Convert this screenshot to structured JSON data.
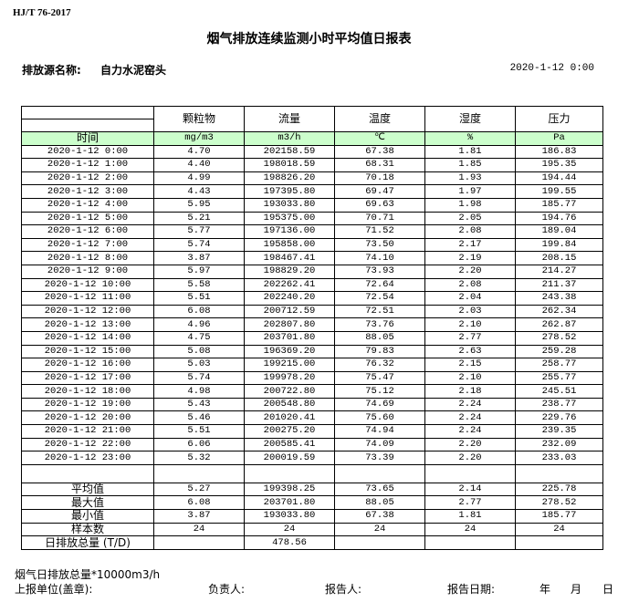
{
  "standard": "HJ/T  76-2017",
  "title": "烟气排放连续监测小时平均值日报表",
  "source_label": "排放源名称:",
  "source_value": "自力水泥窑头",
  "report_datetime": "2020-1-12 0:00",
  "table": {
    "time_header": "时间",
    "columns": [
      {
        "name": "颗粒物",
        "unit": "mg/m3"
      },
      {
        "name": "流量",
        "unit": "m3/h"
      },
      {
        "name": "温度",
        "unit": "℃"
      },
      {
        "name": "湿度",
        "unit": "%"
      },
      {
        "name": "压力",
        "unit": "Pa"
      }
    ],
    "rows": [
      [
        "2020-1-12 0:00",
        "4.70",
        "202158.59",
        "67.38",
        "1.81",
        "186.83"
      ],
      [
        "2020-1-12 1:00",
        "4.40",
        "198018.59",
        "68.31",
        "1.85",
        "195.35"
      ],
      [
        "2020-1-12 2:00",
        "4.99",
        "198826.20",
        "70.18",
        "1.93",
        "194.44"
      ],
      [
        "2020-1-12 3:00",
        "4.43",
        "197395.80",
        "69.47",
        "1.97",
        "199.55"
      ],
      [
        "2020-1-12 4:00",
        "5.95",
        "193033.80",
        "69.63",
        "1.98",
        "185.77"
      ],
      [
        "2020-1-12 5:00",
        "5.21",
        "195375.00",
        "70.71",
        "2.05",
        "194.76"
      ],
      [
        "2020-1-12 6:00",
        "5.77",
        "197136.00",
        "71.52",
        "2.08",
        "189.04"
      ],
      [
        "2020-1-12 7:00",
        "5.74",
        "195858.00",
        "73.50",
        "2.17",
        "199.84"
      ],
      [
        "2020-1-12 8:00",
        "3.87",
        "198467.41",
        "74.10",
        "2.19",
        "208.15"
      ],
      [
        "2020-1-12 9:00",
        "5.97",
        "198829.20",
        "73.93",
        "2.20",
        "214.27"
      ],
      [
        "2020-1-12 10:00",
        "5.58",
        "202262.41",
        "72.64",
        "2.08",
        "211.37"
      ],
      [
        "2020-1-12 11:00",
        "5.51",
        "202240.20",
        "72.54",
        "2.04",
        "243.38"
      ],
      [
        "2020-1-12 12:00",
        "6.08",
        "200712.59",
        "72.51",
        "2.03",
        "262.34"
      ],
      [
        "2020-1-12 13:00",
        "4.96",
        "202807.80",
        "73.76",
        "2.10",
        "262.87"
      ],
      [
        "2020-1-12 14:00",
        "4.75",
        "203701.80",
        "88.05",
        "2.77",
        "278.52"
      ],
      [
        "2020-1-12 15:00",
        "5.08",
        "196369.20",
        "79.83",
        "2.63",
        "259.28"
      ],
      [
        "2020-1-12 16:00",
        "5.03",
        "199215.00",
        "76.32",
        "2.15",
        "258.77"
      ],
      [
        "2020-1-12 17:00",
        "5.74",
        "199978.20",
        "75.47",
        "2.10",
        "255.77"
      ],
      [
        "2020-1-12 18:00",
        "4.98",
        "200722.80",
        "75.12",
        "2.18",
        "245.51"
      ],
      [
        "2020-1-12 19:00",
        "5.43",
        "200548.80",
        "74.69",
        "2.24",
        "238.77"
      ],
      [
        "2020-1-12 20:00",
        "5.46",
        "201020.41",
        "75.60",
        "2.24",
        "229.76"
      ],
      [
        "2020-1-12 21:00",
        "5.51",
        "200275.20",
        "74.94",
        "2.24",
        "239.35"
      ],
      [
        "2020-1-12 22:00",
        "6.06",
        "200585.41",
        "74.09",
        "2.20",
        "232.09"
      ],
      [
        "2020-1-12 23:00",
        "5.32",
        "200019.59",
        "73.39",
        "2.20",
        "233.03"
      ]
    ],
    "summary": [
      [
        "平均值",
        "5.27",
        "199398.25",
        "73.65",
        "2.14",
        "225.78"
      ],
      [
        "最大值",
        "6.08",
        "203701.80",
        "88.05",
        "2.77",
        "278.52"
      ],
      [
        "最小值",
        "3.87",
        "193033.80",
        "67.38",
        "1.81",
        "185.77"
      ],
      [
        "样本数",
        "24",
        "24",
        "24",
        "24",
        "24"
      ],
      [
        "日排放总量 (T/D)",
        "",
        "478.56",
        "",
        "",
        ""
      ]
    ]
  },
  "footer": {
    "note": "烟气日排放总量*10000m3/h",
    "unit_label": "上报单位(盖章):",
    "responsible_label": "负责人:",
    "reporter_label": "报告人:",
    "report_date_label": "报告日期:",
    "year": "年",
    "month": "月",
    "day": "日"
  },
  "colors": {
    "unit_row_bg": "#ccffcc",
    "border": "#000000"
  }
}
